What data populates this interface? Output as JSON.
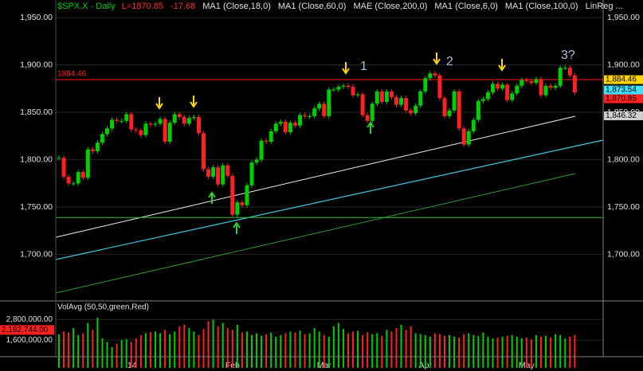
{
  "chart_data": {
    "type": "candlestick",
    "title": "$SPX.X - Daily",
    "header": [
      {
        "text": "L=1870.85",
        "color": "#ff3030"
      },
      {
        "text": "-17.68",
        "color": "#ff3030"
      },
      {
        "text": "MA1 (Close,18,0)",
        "color": "#e0e0e0"
      },
      {
        "text": "MA1 (Close,60,0)",
        "color": "#e0e0e0"
      },
      {
        "text": "MAE (Close,200,0)",
        "color": "#e0e0e0"
      },
      {
        "text": "MA1 (Close,6,0)",
        "color": "#e0e0e0"
      },
      {
        "text": "MA1 (Close,100,0)",
        "color": "#e0e0e0"
      },
      {
        "text": "LinReg ...",
        "color": "#e0e0e0"
      }
    ],
    "title_color": "#00d000",
    "categories": [
      null,
      null,
      null,
      null,
      null,
      null,
      null,
      null,
      null,
      null,
      null,
      null,
      null,
      null,
      null,
      "'14",
      null,
      null,
      null,
      null,
      null,
      null,
      null,
      null,
      null,
      null,
      null,
      null,
      null,
      null,
      null,
      null,
      null,
      null,
      null,
      null,
      "Feb",
      null,
      null,
      null,
      null,
      null,
      null,
      null,
      null,
      null,
      null,
      null,
      null,
      null,
      null,
      null,
      null,
      null,
      null,
      "Mar",
      null,
      null,
      null,
      null,
      null,
      null,
      null,
      null,
      null,
      null,
      null,
      null,
      null,
      null,
      null,
      null,
      null,
      null,
      null,
      null,
      "Apr",
      null,
      null,
      null,
      null,
      null,
      null,
      null,
      null,
      null,
      null,
      null,
      null,
      null,
      null,
      null,
      null,
      null,
      null,
      null,
      null,
      "May",
      null,
      null,
      null,
      null,
      null,
      null,
      null,
      null,
      null,
      null
    ],
    "series": [
      {
        "name": "$SPX.X",
        "up_color": "#00d000",
        "down_color": "#ff2020",
        "values": [
          1802,
          1782,
          1775,
          1775,
          1787,
          1781,
          1811,
          1809,
          1818,
          1827,
          1833,
          1842,
          1841,
          1841,
          1848,
          1832,
          1831,
          1826,
          1838,
          1837,
          1838,
          1843,
          1819,
          1839,
          1848,
          1845,
          1838,
          1844,
          1845,
          1828,
          1790,
          1782,
          1792,
          1774,
          1794,
          1783,
          1742,
          1755,
          1752,
          1773,
          1797,
          1800,
          1820,
          1819,
          1830,
          1838,
          1840,
          1829,
          1839,
          1836,
          1847,
          1846,
          1846,
          1854,
          1859,
          1846,
          1874,
          1874,
          1877,
          1878,
          1877,
          1868,
          1869,
          1847,
          1841,
          1859,
          1872,
          1861,
          1872,
          1866,
          1858,
          1865,
          1852,
          1849,
          1857,
          1872,
          1886,
          1891,
          1889,
          1865,
          1846,
          1852,
          1872,
          1833,
          1816,
          1830,
          1842,
          1862,
          1864,
          1871,
          1880,
          1875,
          1879,
          1863,
          1870,
          1878,
          1884,
          1883,
          1881,
          1885,
          1868,
          1878,
          1876,
          1878,
          1897,
          1897,
          1889,
          1870.85
        ]
      }
    ],
    "ylim": [
      1651,
      1968.5
    ],
    "yticks": [
      {
        "value": 1950,
        "label": "1,950.00"
      },
      {
        "value": 1900,
        "label": "1,900.00"
      },
      {
        "value": 1850,
        "label": "1,850.00"
      },
      {
        "value": 1800,
        "label": "1,800.00"
      },
      {
        "value": 1750,
        "label": "1,750.00"
      },
      {
        "value": 1700,
        "label": "1,700.00"
      }
    ],
    "horizontal_lines": [
      {
        "value": 1884.46,
        "label": "1884.46",
        "color": "#ff2020"
      },
      {
        "value": 1739,
        "color": "#30c030"
      }
    ],
    "price_tags": [
      {
        "value": 1884.46,
        "label": "1,884.46",
        "color": "#ffd700"
      },
      {
        "value": 1873.54,
        "label": "1,873.54",
        "color": "#40e0ff"
      },
      {
        "value": 1870.85,
        "label": "1,870.85",
        "color": "#ff2020"
      },
      {
        "value": 1846.32,
        "label": "1,846.32",
        "color": "#d0d0d0"
      }
    ],
    "annotations": [
      "1",
      "2",
      "3?"
    ],
    "volume": {
      "title": "VolAvg (50,50,green,Red)",
      "values": [
        1950000,
        2100000,
        2050000,
        2300000,
        1900000,
        2000000,
        2600000,
        2200000,
        2900000,
        1700000,
        1500000,
        1200000,
        1400000,
        1600000,
        1650000,
        1500000,
        1700000,
        1900000,
        2000000,
        2050000,
        2100000,
        2000000,
        2200000,
        1950000,
        2100000,
        2400000,
        2500000,
        2300000,
        2100000,
        1900000,
        2250000,
        2700000,
        2800000,
        2400000,
        2600000,
        2300000,
        2200000,
        2500000,
        2050000,
        2100000,
        1900000,
        2000000,
        1850000,
        1950000,
        2050000,
        1800000,
        1900000,
        2000000,
        2100000,
        2050000,
        2150000,
        1950000,
        2000000,
        2300000,
        2100000,
        1900000,
        1800000,
        2400000,
        2600000,
        2250000,
        2000000,
        2100000,
        2150000,
        1900000,
        2050000,
        1950000,
        2000000,
        1850000,
        2200000,
        2100000,
        2300000,
        2500000,
        2200000,
        2400000,
        2000000,
        1950000,
        1900000,
        1800000,
        2000000,
        1950000,
        1850000,
        1900000,
        1800000,
        1750000,
        1950000,
        2000000,
        1900000,
        1850000,
        2050000,
        1800000,
        1700000,
        1750000,
        1800000,
        1850000,
        1900000,
        1800000,
        1700000,
        1750000,
        1650000,
        1900000,
        1800000,
        1850000,
        1750000,
        1950000,
        1900000,
        1700000,
        1800000,
        1900000
      ],
      "ylim": [
        0,
        3780000
      ],
      "yticks": [
        {
          "value": 2800000,
          "label": "2,800,000.00"
        },
        {
          "value": 1600000,
          "label": "1,600,000.00"
        }
      ],
      "tag": {
        "value": 2192744,
        "label": "2,192,744.00",
        "color": "#ff2020"
      }
    }
  }
}
